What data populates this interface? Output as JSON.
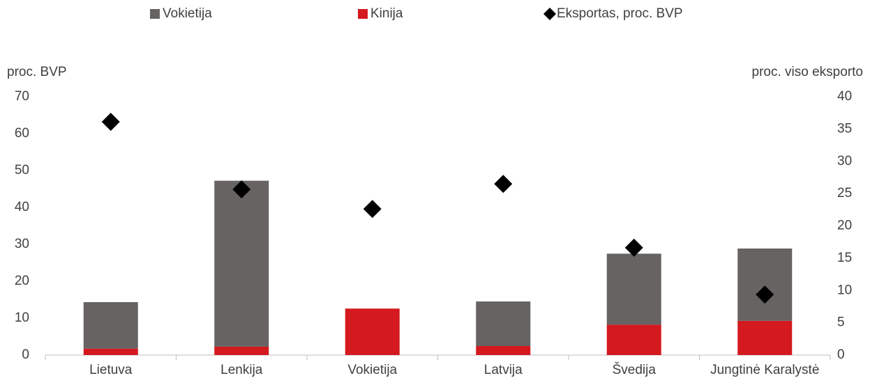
{
  "chart_data": {
    "type": "bar",
    "categories": [
      "Lietuva",
      "Lenkija",
      "Vokietija",
      "Latvija",
      "Švedija",
      "Jungtinė Karalystė"
    ],
    "ylabel": "proc. BVP",
    "y2label": "proc. viso eksporto",
    "ylim": [
      0,
      70
    ],
    "yticks": [
      0,
      10,
      20,
      30,
      40,
      50,
      60,
      70
    ],
    "y2lim": [
      0,
      40
    ],
    "y2ticks": [
      0,
      5,
      10,
      15,
      20,
      25,
      30,
      35,
      40
    ],
    "stacked": true,
    "series": [
      {
        "name": "Vokietija",
        "color": "#666362",
        "axis": "y2",
        "values": [
          7.2,
          25.7,
          null,
          6.9,
          11.0,
          11.2
        ]
      },
      {
        "name": "Kinija",
        "color": "#d4191f",
        "axis": "y2",
        "values": [
          1.0,
          1.3,
          7.2,
          1.4,
          4.7,
          5.3
        ]
      },
      {
        "name": "Eksportas, proc. BVP",
        "color": "#000000",
        "type": "scatter",
        "marker": "diamond",
        "values": [
          63.2,
          44.9,
          39.6,
          46.4,
          29.1,
          16.4
        ]
      }
    ]
  }
}
